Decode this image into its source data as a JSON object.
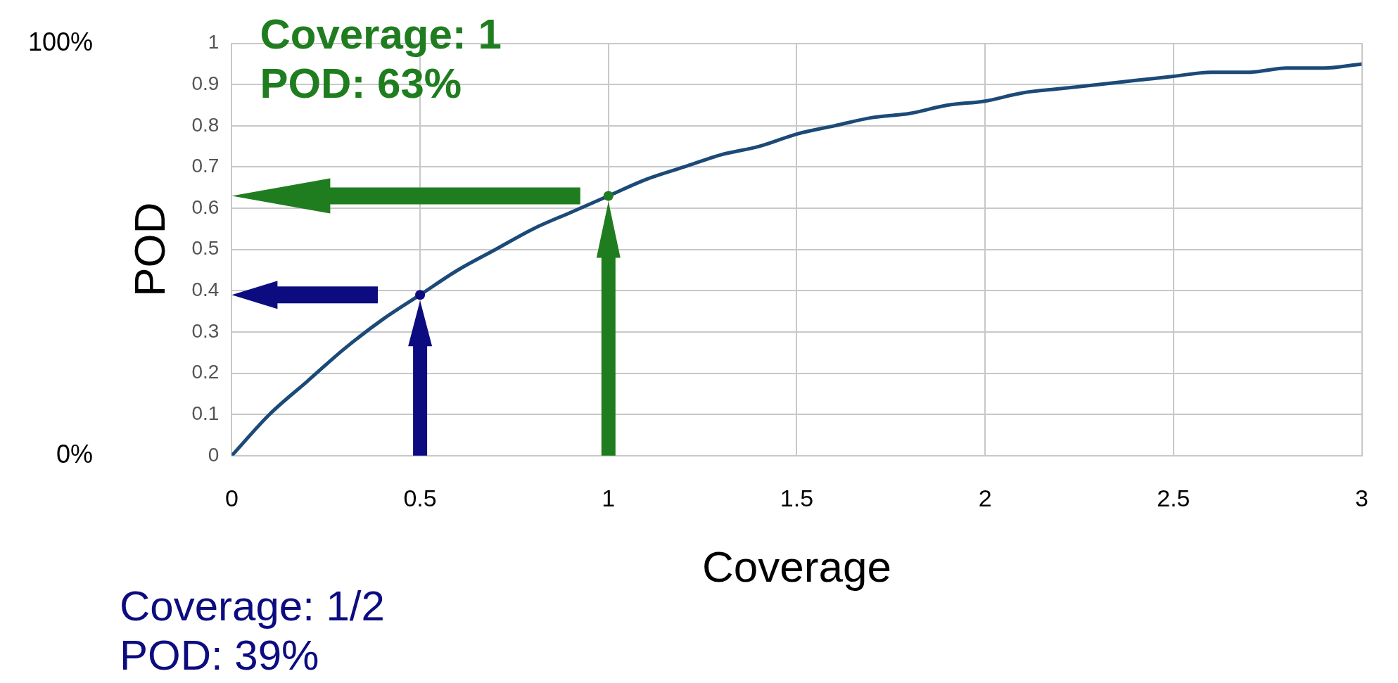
{
  "chart_data": {
    "type": "line",
    "xlabel": "Coverage",
    "ylabel": "POD",
    "x": [
      0,
      0.1,
      0.2,
      0.3,
      0.4,
      0.5,
      0.6,
      0.7,
      0.8,
      0.9,
      1,
      1.1,
      1.2,
      1.3,
      1.4,
      1.5,
      1.6,
      1.7,
      1.8,
      1.9,
      2,
      2.1,
      2.2,
      2.3,
      2.4,
      2.5,
      2.6,
      2.7,
      2.8,
      2.9,
      3
    ],
    "series": [
      {
        "type": "scatter",
        "marker": "circle",
        "x": [
          0.5,
          1
        ],
        "values": [
          0.39,
          0.63
        ],
        "colors": [
          "#0c0c80",
          "#1f7d1f"
        ]
      },
      {
        "color": "#1c4a78",
        "values": [
          0,
          0.1,
          0.18,
          0.26,
          0.33,
          0.39,
          0.45,
          0.5,
          0.55,
          0.59,
          0.63,
          0.67,
          0.7,
          0.73,
          0.75,
          0.78,
          0.8,
          0.82,
          0.83,
          0.85,
          0.86,
          0.88,
          0.89,
          0.9,
          0.91,
          0.92,
          0.93,
          0.93,
          0.94,
          0.94,
          0.95
        ]
      }
    ],
    "xlim": [
      0,
      3
    ],
    "xticks": [
      0,
      0.5,
      1,
      1.5,
      2,
      2.5,
      3
    ],
    "ylim": [
      0,
      1
    ],
    "yticks": [
      0,
      0.1,
      0.2,
      0.3,
      0.4,
      0.5,
      0.6,
      0.7,
      0.8,
      0.9,
      1
    ],
    "y2lim": [
      0,
      1
    ],
    "y2ticks": [
      {
        "value": 0,
        "label": "0%"
      },
      {
        "value": 1,
        "label": "100%"
      }
    ],
    "annotations": [
      "Coverage: 1\nPOD: 63%",
      "Coverage: 1/2\nPOD: 39%"
    ],
    "grid": true,
    "legend": false,
    "marker": "none",
    "line_style": "solid"
  }
}
